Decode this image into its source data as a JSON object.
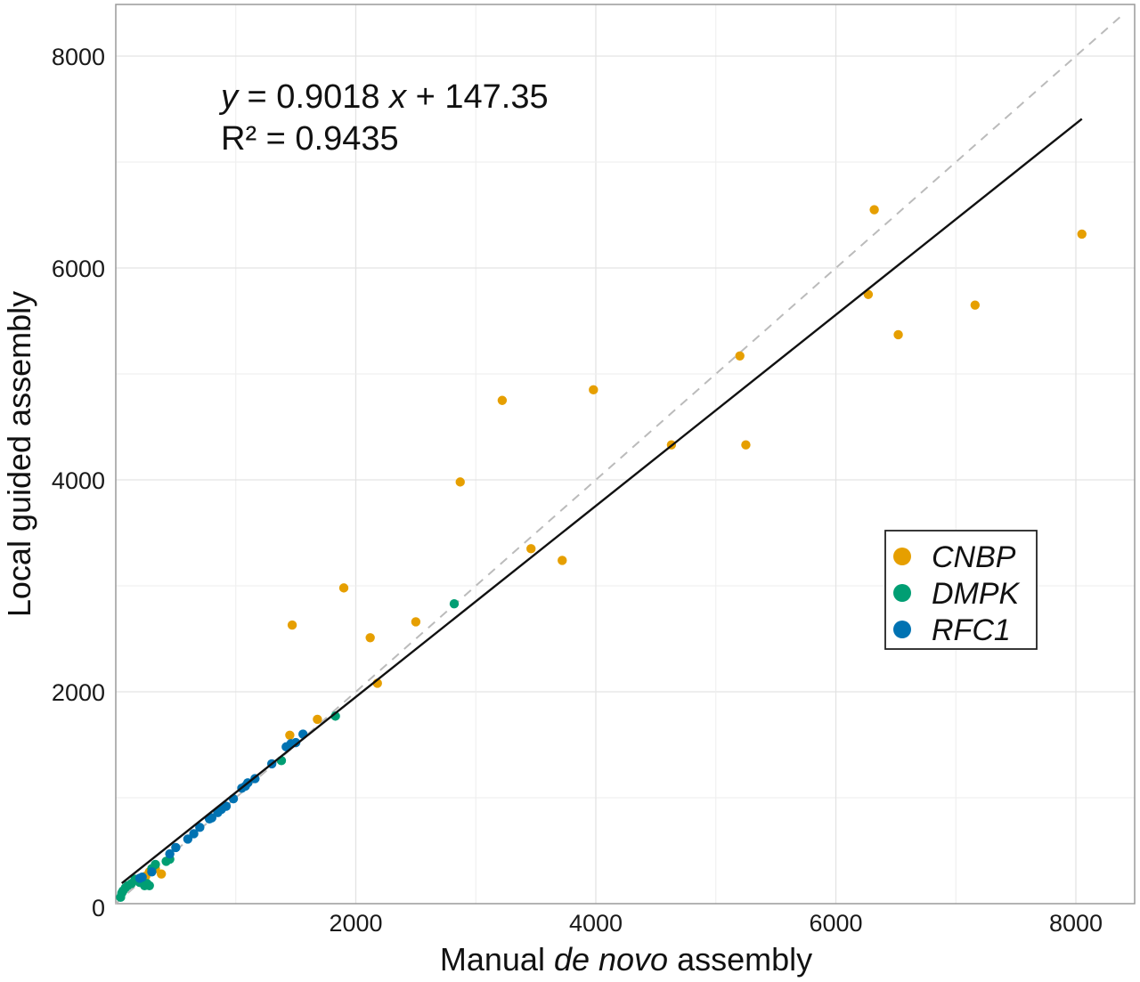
{
  "chart_data": {
    "type": "scatter",
    "xlabel_pre": "Manual ",
    "xlabel_italic": "de novo",
    "xlabel_post": " assembly",
    "ylabel": "Local guided assembly",
    "xlim": [
      0,
      8500
    ],
    "ylim": [
      0,
      8500
    ],
    "x_ticks": [
      2000,
      4000,
      6000,
      8000
    ],
    "y_ticks": [
      2000,
      4000,
      6000,
      8000
    ],
    "origin_label": "0",
    "grid": true,
    "legend_position": "right",
    "equation": {
      "y_var": "y",
      "middle": " = 0.9018 ",
      "x_var": "x",
      "tail": " + 147.35",
      "r2": "R² = 0.9435"
    },
    "fit_line": {
      "slope": 0.9018,
      "intercept": 147.35,
      "x_range": [
        50,
        8050
      ],
      "color": "#111111"
    },
    "identity_line": {
      "color": "#bbbbbb",
      "dashed": true
    },
    "series": [
      {
        "name": "CNBP",
        "color": "#E69F00",
        "points": [
          [
            8050,
            6320
          ],
          [
            7160,
            5650
          ],
          [
            6520,
            5370
          ],
          [
            6320,
            6550
          ],
          [
            6270,
            5750
          ],
          [
            5250,
            4330
          ],
          [
            5200,
            5170
          ],
          [
            4630,
            4330
          ],
          [
            3980,
            4850
          ],
          [
            3720,
            3240
          ],
          [
            3460,
            3350
          ],
          [
            3220,
            4750
          ],
          [
            2870,
            3980
          ],
          [
            2500,
            2660
          ],
          [
            2180,
            2080
          ],
          [
            2120,
            2510
          ],
          [
            1900,
            2980
          ],
          [
            1680,
            1740
          ],
          [
            1470,
            2630
          ],
          [
            1450,
            1590
          ],
          [
            380,
            280
          ],
          [
            330,
            330
          ],
          [
            280,
            300
          ],
          [
            250,
            260
          ]
        ]
      },
      {
        "name": "DMPK",
        "color": "#009E73",
        "points": [
          [
            2820,
            2830
          ],
          [
            1830,
            1770
          ],
          [
            1380,
            1350
          ],
          [
            450,
            420
          ],
          [
            420,
            400
          ],
          [
            330,
            370
          ],
          [
            300,
            330
          ],
          [
            280,
            170
          ],
          [
            260,
            190
          ],
          [
            240,
            170
          ],
          [
            200,
            200
          ],
          [
            160,
            230
          ],
          [
            130,
            190
          ],
          [
            100,
            170
          ],
          [
            80,
            150
          ],
          [
            60,
            120
          ],
          [
            50,
            100
          ],
          [
            40,
            60
          ]
        ]
      },
      {
        "name": "RFC1",
        "color": "#0072B2",
        "points": [
          [
            1560,
            1600
          ],
          [
            1500,
            1520
          ],
          [
            1460,
            1510
          ],
          [
            1420,
            1480
          ],
          [
            1300,
            1320
          ],
          [
            1160,
            1180
          ],
          [
            1100,
            1140
          ],
          [
            1080,
            1110
          ],
          [
            1050,
            1090
          ],
          [
            980,
            990
          ],
          [
            920,
            920
          ],
          [
            880,
            890
          ],
          [
            850,
            860
          ],
          [
            800,
            810
          ],
          [
            780,
            800
          ],
          [
            700,
            720
          ],
          [
            650,
            660
          ],
          [
            600,
            610
          ],
          [
            500,
            530
          ],
          [
            450,
            470
          ],
          [
            300,
            300
          ],
          [
            220,
            250
          ],
          [
            200,
            240
          ]
        ]
      }
    ]
  }
}
